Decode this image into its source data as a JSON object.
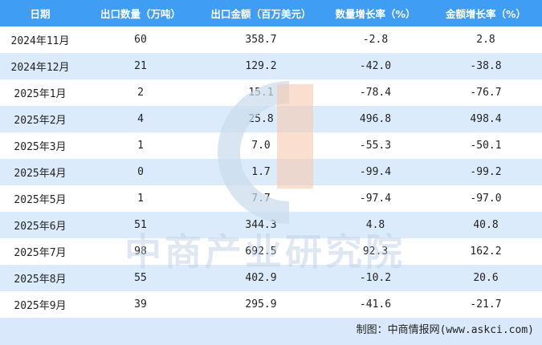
{
  "headers": [
    "日期",
    "出口数量（万吨）",
    "出口金额（百万美元）",
    "数量增长率（%）",
    "金额增长率（%）"
  ],
  "rows": [
    [
      "2024年11月",
      "60",
      "358.7",
      "-2.8",
      "2.8"
    ],
    [
      "2024年12月",
      "21",
      "129.2",
      "-42.0",
      "-38.8"
    ],
    [
      "2025年1月",
      "2",
      "15.1",
      "-78.4",
      "-76.7"
    ],
    [
      "2025年2月",
      "4",
      "25.8",
      "496.8",
      "498.4"
    ],
    [
      "2025年3月",
      "1",
      "7.0",
      "-55.3",
      "-50.1"
    ],
    [
      "2025年4月",
      "0",
      "1.7",
      "-99.4",
      "-99.2"
    ],
    [
      "2025年5月",
      "1",
      "7.7",
      "-97.4",
      "-97.0"
    ],
    [
      "2025年6月",
      "51",
      "344.3",
      "4.8",
      "40.8"
    ],
    [
      "2025年7月",
      "98",
      "692.5",
      "92.3",
      "162.2"
    ],
    [
      "2025年8月",
      "55",
      "402.9",
      "-10.2",
      "20.6"
    ],
    [
      "2025年9月",
      "39",
      "295.9",
      "-41.6",
      "-21.7"
    ]
  ],
  "footer": "制图：中商情报网(www.askci.com)",
  "watermark": "中商产业研究院",
  "colors": {
    "header": "#3f9ef3",
    "alt_row": "#d9e9fb"
  }
}
